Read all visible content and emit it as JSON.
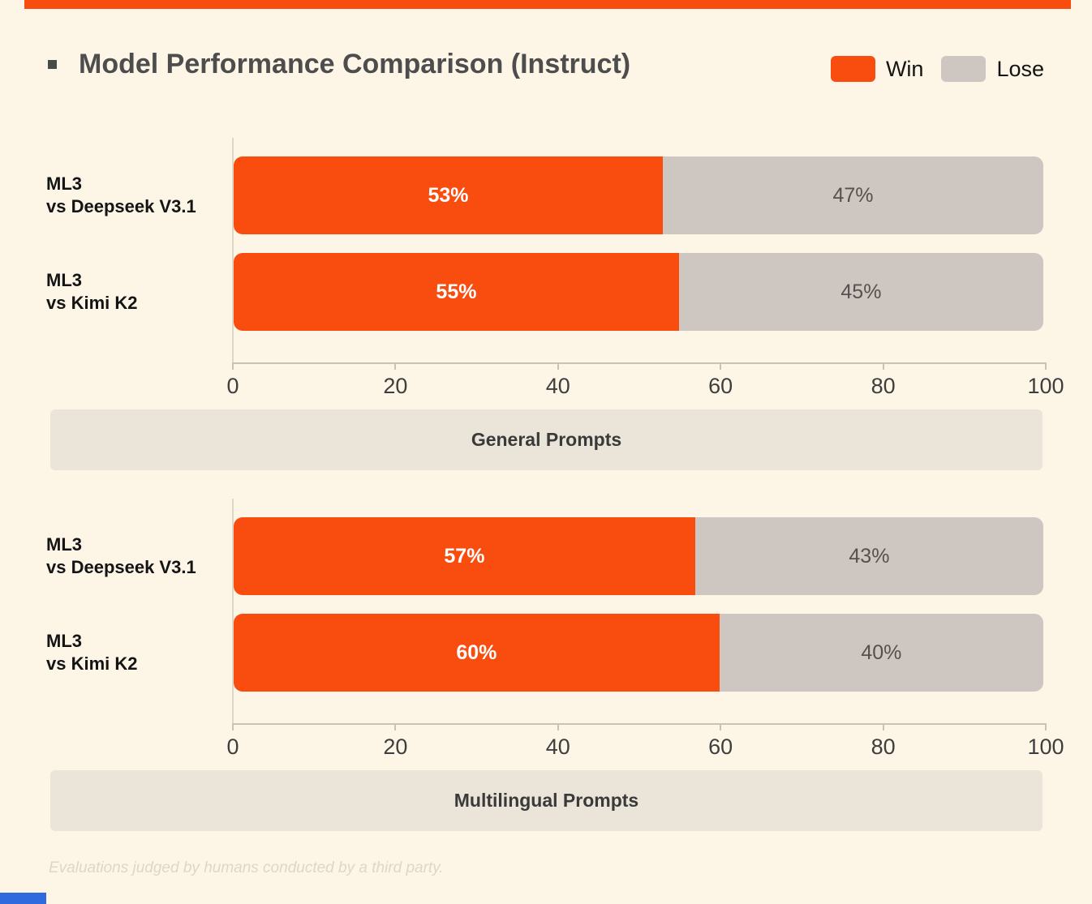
{
  "page": {
    "background_color": "#FDF6E7"
  },
  "decor": {
    "top_bar_color": "#F94D0F",
    "bottom_left_bar_color": "#2F6BDF"
  },
  "header": {
    "title": "Model Performance Comparison (Instruct)",
    "bullet_icon": "square-bullet-icon",
    "bullet_color": "#4A4A4A"
  },
  "legend": {
    "position": "top-right",
    "items": [
      {
        "label": "Win",
        "color": "#F94D0F"
      },
      {
        "label": "Lose",
        "color": "#CDC6C1"
      }
    ]
  },
  "chart_data": [
    {
      "type": "bar",
      "orientation": "horizontal",
      "stacked": true,
      "title": "General Prompts",
      "categories": [
        "ML3 vs Deepseek V3.1",
        "ML3 vs Kimi K2"
      ],
      "category_lines": [
        [
          "ML3",
          "vs Deepseek V3.1"
        ],
        [
          "ML3",
          "vs Kimi K2"
        ]
      ],
      "series": [
        {
          "name": "Win",
          "color": "#F94D0F",
          "values": [
            53,
            55
          ],
          "labels": [
            "53%",
            "55%"
          ]
        },
        {
          "name": "Lose",
          "color": "#CDC6C1",
          "values": [
            47,
            45
          ],
          "labels": [
            "47%",
            "45%"
          ]
        }
      ],
      "xlim": [
        0,
        100
      ],
      "x_ticks": [
        "0",
        "20",
        "40",
        "60",
        "80",
        "100"
      ],
      "grid": false,
      "legend_position": "top-right"
    },
    {
      "type": "bar",
      "orientation": "horizontal",
      "stacked": true,
      "title": "Multilingual Prompts",
      "categories": [
        "ML3 vs Deepseek V3.1",
        "ML3 vs Kimi K2"
      ],
      "category_lines": [
        [
          "ML3",
          "vs Deepseek V3.1"
        ],
        [
          "ML3",
          "vs Kimi K2"
        ]
      ],
      "series": [
        {
          "name": "Win",
          "color": "#F94D0F",
          "values": [
            57,
            60
          ],
          "labels": [
            "57%",
            "60%"
          ]
        },
        {
          "name": "Lose",
          "color": "#CDC6C1",
          "values": [
            43,
            40
          ],
          "labels": [
            "43%",
            "40%"
          ]
        }
      ],
      "xlim": [
        0,
        100
      ],
      "x_ticks": [
        "0",
        "20",
        "40",
        "60",
        "80",
        "100"
      ],
      "grid": false,
      "legend_position": "top-right"
    }
  ],
  "sections": [
    {
      "label": "General Prompts"
    },
    {
      "label": "Multilingual Prompts"
    }
  ],
  "footer": {
    "note": "Evaluations judged by humans conducted by a third party."
  }
}
